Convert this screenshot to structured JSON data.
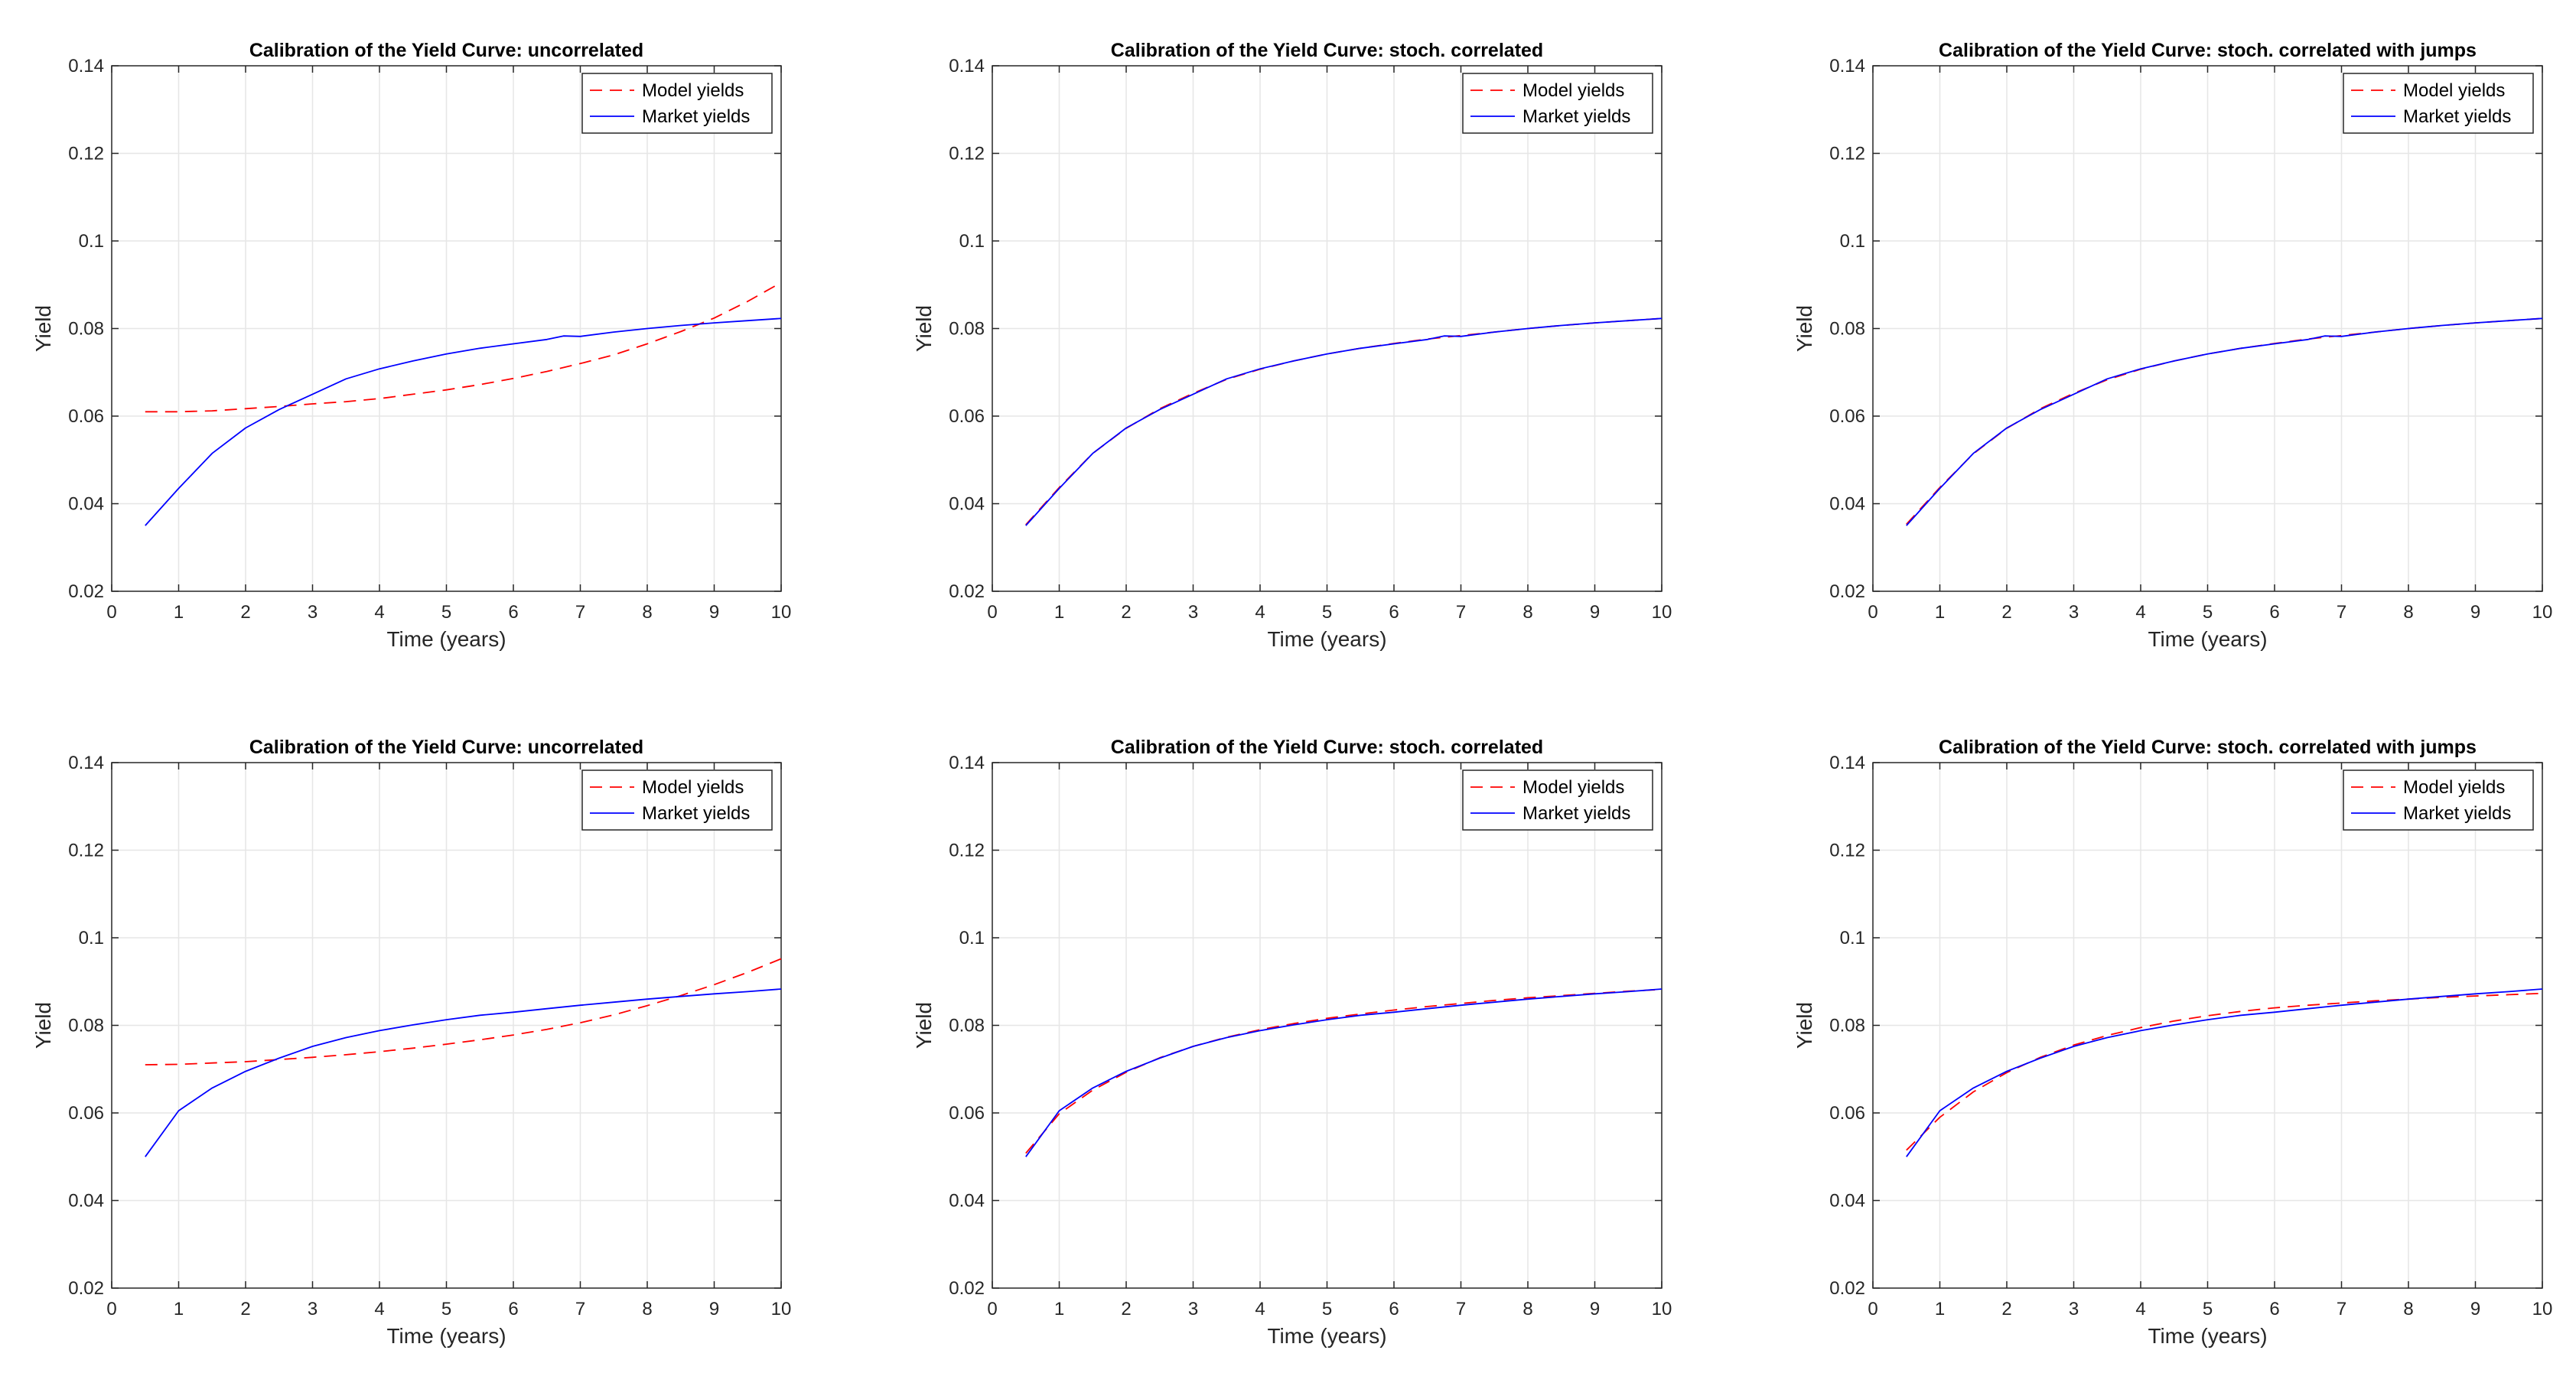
{
  "figure": {
    "background": "#ffffff"
  },
  "colors": {
    "model": "#ff0000",
    "market": "#0000ff",
    "grid": "#e6e6e6",
    "axis": "#262626"
  },
  "chart_data": [
    {
      "type": "line",
      "title": "Calibration of the Yield Curve: uncorrelated",
      "xlabel": "Time (years)",
      "ylabel": "Yield",
      "xlim": [
        0,
        10
      ],
      "ylim": [
        0.02,
        0.14
      ],
      "xticks": [
        0,
        1,
        2,
        3,
        4,
        5,
        6,
        7,
        8,
        9,
        10
      ],
      "xticklabels": [
        "0",
        "1",
        "2",
        "3",
        "4",
        "5",
        "6",
        "7",
        "8",
        "9",
        "10"
      ],
      "yticks": [
        0.02,
        0.04,
        0.06,
        0.08,
        0.1,
        0.12,
        0.14
      ],
      "yticklabels": [
        "0.02",
        "0.04",
        "0.06",
        "0.08",
        "0.1",
        "0.12",
        "0.14"
      ],
      "grid": true,
      "legend_position": "top-right",
      "series": [
        {
          "name": "Model yields",
          "style": "dashed",
          "color": "#ff0000",
          "x": [
            0.5,
            1,
            1.5,
            2,
            2.5,
            3,
            3.5,
            4,
            4.5,
            5,
            5.5,
            6,
            6.5,
            7,
            7.5,
            8,
            8.5,
            9,
            9.5,
            10
          ],
          "y": [
            0.061,
            0.061,
            0.0612,
            0.0617,
            0.0622,
            0.0628,
            0.0633,
            0.064,
            0.065,
            0.066,
            0.0672,
            0.0686,
            0.0702,
            0.072,
            0.074,
            0.0765,
            0.0793,
            0.0824,
            0.0862,
            0.0905
          ]
        },
        {
          "name": "Market yields",
          "style": "solid",
          "color": "#0000ff",
          "x": [
            0.5,
            1,
            1.5,
            2,
            2.5,
            3,
            3.5,
            4,
            4.5,
            5,
            5.5,
            6,
            6.5,
            6.75,
            7,
            7.5,
            8,
            8.5,
            9,
            9.5,
            10
          ],
          "y": [
            0.035,
            0.0435,
            0.0515,
            0.0573,
            0.0615,
            0.065,
            0.0685,
            0.0708,
            0.0726,
            0.0742,
            0.0755,
            0.0765,
            0.0775,
            0.0783,
            0.0782,
            0.0792,
            0.08,
            0.0807,
            0.0813,
            0.0818,
            0.0823
          ]
        }
      ]
    },
    {
      "type": "line",
      "title": "Calibration of the Yield Curve: stoch. correlated",
      "xlabel": "Time (years)",
      "ylabel": "Yield",
      "xlim": [
        0,
        10
      ],
      "ylim": [
        0.02,
        0.14
      ],
      "xticks": [
        0,
        1,
        2,
        3,
        4,
        5,
        6,
        7,
        8,
        9,
        10
      ],
      "xticklabels": [
        "0",
        "1",
        "2",
        "3",
        "4",
        "5",
        "6",
        "7",
        "8",
        "9",
        "10"
      ],
      "yticks": [
        0.02,
        0.04,
        0.06,
        0.08,
        0.1,
        0.12,
        0.14
      ],
      "yticklabels": [
        "0.02",
        "0.04",
        "0.06",
        "0.08",
        "0.1",
        "0.12",
        "0.14"
      ],
      "grid": true,
      "legend_position": "top-right",
      "series": [
        {
          "name": "Model yields",
          "style": "dashed",
          "color": "#ff0000",
          "x": [
            0.5,
            1,
            1.5,
            2,
            2.5,
            3,
            3.5,
            4,
            4.5,
            5,
            5.5,
            6,
            6.5,
            7,
            7.5,
            8,
            8.5,
            9,
            9.5,
            10
          ],
          "y": [
            0.0352,
            0.0437,
            0.0515,
            0.0572,
            0.0617,
            0.0652,
            0.0684,
            0.0707,
            0.0726,
            0.0742,
            0.0755,
            0.0766,
            0.0776,
            0.0784,
            0.0792,
            0.08,
            0.0807,
            0.0813,
            0.0818,
            0.0823
          ]
        },
        {
          "name": "Market yields",
          "style": "solid",
          "color": "#0000ff",
          "x": [
            0.5,
            1,
            1.5,
            2,
            2.5,
            3,
            3.5,
            4,
            4.5,
            5,
            5.5,
            6,
            6.5,
            6.75,
            7,
            7.5,
            8,
            8.5,
            9,
            9.5,
            10
          ],
          "y": [
            0.035,
            0.0435,
            0.0515,
            0.0573,
            0.0615,
            0.065,
            0.0685,
            0.0708,
            0.0726,
            0.0742,
            0.0755,
            0.0765,
            0.0775,
            0.0783,
            0.0782,
            0.0792,
            0.08,
            0.0807,
            0.0813,
            0.0818,
            0.0823
          ]
        }
      ]
    },
    {
      "type": "line",
      "title": "Calibration of the Yield Curve: stoch. correlated with jumps",
      "xlabel": "Time (years)",
      "ylabel": "Yield",
      "xlim": [
        0,
        10
      ],
      "ylim": [
        0.02,
        0.14
      ],
      "xticks": [
        0,
        1,
        2,
        3,
        4,
        5,
        6,
        7,
        8,
        9,
        10
      ],
      "xticklabels": [
        "0",
        "1",
        "2",
        "3",
        "4",
        "5",
        "6",
        "7",
        "8",
        "9",
        "10"
      ],
      "yticks": [
        0.02,
        0.04,
        0.06,
        0.08,
        0.1,
        0.12,
        0.14
      ],
      "yticklabels": [
        "0.02",
        "0.04",
        "0.06",
        "0.08",
        "0.1",
        "0.12",
        "0.14"
      ],
      "grid": true,
      "legend_position": "top-right",
      "series": [
        {
          "name": "Model yields",
          "style": "dashed",
          "color": "#ff0000",
          "x": [
            0.5,
            1,
            1.5,
            2,
            2.5,
            3,
            3.5,
            4,
            4.5,
            5,
            5.5,
            6,
            6.5,
            7,
            7.5,
            8,
            8.5,
            9,
            9.5,
            10
          ],
          "y": [
            0.0353,
            0.0437,
            0.0514,
            0.0572,
            0.0617,
            0.0652,
            0.0683,
            0.0707,
            0.0726,
            0.0742,
            0.0755,
            0.0766,
            0.0776,
            0.0784,
            0.0792,
            0.08,
            0.0807,
            0.0813,
            0.0818,
            0.0823
          ]
        },
        {
          "name": "Market yields",
          "style": "solid",
          "color": "#0000ff",
          "x": [
            0.5,
            1,
            1.5,
            2,
            2.5,
            3,
            3.5,
            4,
            4.5,
            5,
            5.5,
            6,
            6.5,
            6.75,
            7,
            7.5,
            8,
            8.5,
            9,
            9.5,
            10
          ],
          "y": [
            0.035,
            0.0435,
            0.0515,
            0.0573,
            0.0615,
            0.065,
            0.0685,
            0.0708,
            0.0726,
            0.0742,
            0.0755,
            0.0765,
            0.0775,
            0.0783,
            0.0782,
            0.0792,
            0.08,
            0.0807,
            0.0813,
            0.0818,
            0.0823
          ]
        }
      ]
    },
    {
      "type": "line",
      "title": "Calibration of the Yield Curve: uncorrelated",
      "xlabel": "Time (years)",
      "ylabel": "Yield",
      "xlim": [
        0,
        10
      ],
      "ylim": [
        0.02,
        0.14
      ],
      "xticks": [
        0,
        1,
        2,
        3,
        4,
        5,
        6,
        7,
        8,
        9,
        10
      ],
      "xticklabels": [
        "0",
        "1",
        "2",
        "3",
        "4",
        "5",
        "6",
        "7",
        "8",
        "9",
        "10"
      ],
      "yticks": [
        0.02,
        0.04,
        0.06,
        0.08,
        0.1,
        0.12,
        0.14
      ],
      "yticklabels": [
        "0.02",
        "0.04",
        "0.06",
        "0.08",
        "0.1",
        "0.12",
        "0.14"
      ],
      "grid": true,
      "legend_position": "top-right",
      "series": [
        {
          "name": "Model yields",
          "style": "dashed",
          "color": "#ff0000",
          "x": [
            0.5,
            1,
            1.5,
            2,
            2.5,
            3,
            3.5,
            4,
            4.5,
            5,
            5.5,
            6,
            6.5,
            7,
            7.5,
            8,
            8.5,
            9,
            9.5,
            10
          ],
          "y": [
            0.071,
            0.0711,
            0.0714,
            0.0717,
            0.0722,
            0.0727,
            0.0733,
            0.074,
            0.0748,
            0.0757,
            0.0767,
            0.0778,
            0.0791,
            0.0806,
            0.0824,
            0.0845,
            0.0868,
            0.0893,
            0.0921,
            0.0952
          ]
        },
        {
          "name": "Market yields",
          "style": "solid",
          "color": "#0000ff",
          "x": [
            0.5,
            1,
            1.5,
            2,
            2.5,
            3,
            3.5,
            4,
            4.5,
            5,
            5.5,
            6,
            6.5,
            7,
            7.5,
            8,
            8.5,
            9,
            9.5,
            10
          ],
          "y": [
            0.05,
            0.0605,
            0.0657,
            0.0695,
            0.0725,
            0.0752,
            0.0772,
            0.0788,
            0.0801,
            0.0813,
            0.0823,
            0.083,
            0.0838,
            0.0846,
            0.0853,
            0.086,
            0.0866,
            0.0872,
            0.0877,
            0.0883
          ]
        }
      ]
    },
    {
      "type": "line",
      "title": "Calibration of the Yield Curve: stoch. correlated",
      "xlabel": "Time (years)",
      "ylabel": "Yield",
      "xlim": [
        0,
        10
      ],
      "ylim": [
        0.02,
        0.14
      ],
      "xticks": [
        0,
        1,
        2,
        3,
        4,
        5,
        6,
        7,
        8,
        9,
        10
      ],
      "xticklabels": [
        "0",
        "1",
        "2",
        "3",
        "4",
        "5",
        "6",
        "7",
        "8",
        "9",
        "10"
      ],
      "yticks": [
        0.02,
        0.04,
        0.06,
        0.08,
        0.1,
        0.12,
        0.14
      ],
      "yticklabels": [
        "0.02",
        "0.04",
        "0.06",
        "0.08",
        "0.1",
        "0.12",
        "0.14"
      ],
      "grid": true,
      "legend_position": "top-right",
      "series": [
        {
          "name": "Model yields",
          "style": "dashed",
          "color": "#ff0000",
          "x": [
            0.5,
            1,
            1.5,
            2,
            2.5,
            3,
            3.5,
            4,
            4.5,
            5,
            5.5,
            6,
            6.5,
            7,
            7.5,
            8,
            8.5,
            9,
            9.5,
            10
          ],
          "y": [
            0.0508,
            0.0598,
            0.0652,
            0.0693,
            0.0726,
            0.0752,
            0.0773,
            0.079,
            0.0804,
            0.0816,
            0.0826,
            0.0835,
            0.0843,
            0.085,
            0.0857,
            0.0863,
            0.0868,
            0.0873,
            0.0878,
            0.0882
          ]
        },
        {
          "name": "Market yields",
          "style": "solid",
          "color": "#0000ff",
          "x": [
            0.5,
            1,
            1.5,
            2,
            2.5,
            3,
            3.5,
            4,
            4.5,
            5,
            5.5,
            6,
            6.5,
            7,
            7.5,
            8,
            8.5,
            9,
            9.5,
            10
          ],
          "y": [
            0.05,
            0.0605,
            0.0657,
            0.0695,
            0.0725,
            0.0752,
            0.0772,
            0.0788,
            0.0801,
            0.0813,
            0.0823,
            0.083,
            0.0838,
            0.0846,
            0.0853,
            0.086,
            0.0866,
            0.0872,
            0.0877,
            0.0883
          ]
        }
      ]
    },
    {
      "type": "line",
      "title": "Calibration of the Yield Curve: stoch. correlated with jumps",
      "xlabel": "Time (years)",
      "ylabel": "Yield",
      "xlim": [
        0,
        10
      ],
      "ylim": [
        0.02,
        0.14
      ],
      "xticks": [
        0,
        1,
        2,
        3,
        4,
        5,
        6,
        7,
        8,
        9,
        10
      ],
      "xticklabels": [
        "0",
        "1",
        "2",
        "3",
        "4",
        "5",
        "6",
        "7",
        "8",
        "9",
        "10"
      ],
      "yticks": [
        0.02,
        0.04,
        0.06,
        0.08,
        0.1,
        0.12,
        0.14
      ],
      "yticklabels": [
        "0.02",
        "0.04",
        "0.06",
        "0.08",
        "0.1",
        "0.12",
        "0.14"
      ],
      "grid": true,
      "legend_position": "top-right",
      "series": [
        {
          "name": "Model yields",
          "style": "dashed",
          "color": "#ff0000",
          "x": [
            0.5,
            1,
            1.5,
            2,
            2.5,
            3,
            3.5,
            4,
            4.5,
            5,
            5.5,
            6,
            6.5,
            7,
            7.5,
            8,
            8.5,
            9,
            9.5,
            10
          ],
          "y": [
            0.0515,
            0.059,
            0.0648,
            0.0692,
            0.0727,
            0.0755,
            0.0777,
            0.0795,
            0.081,
            0.0822,
            0.0832,
            0.084,
            0.0846,
            0.0851,
            0.0856,
            0.086,
            0.0864,
            0.0867,
            0.087,
            0.0873
          ]
        },
        {
          "name": "Market yields",
          "style": "solid",
          "color": "#0000ff",
          "x": [
            0.5,
            1,
            1.5,
            2,
            2.5,
            3,
            3.5,
            4,
            4.5,
            5,
            5.5,
            6,
            6.5,
            7,
            7.5,
            8,
            8.5,
            9,
            9.5,
            10
          ],
          "y": [
            0.05,
            0.0605,
            0.0657,
            0.0695,
            0.0725,
            0.0752,
            0.0772,
            0.0788,
            0.0801,
            0.0813,
            0.0823,
            0.083,
            0.0838,
            0.0846,
            0.0853,
            0.086,
            0.0866,
            0.0872,
            0.0877,
            0.0883
          ]
        }
      ]
    }
  ]
}
